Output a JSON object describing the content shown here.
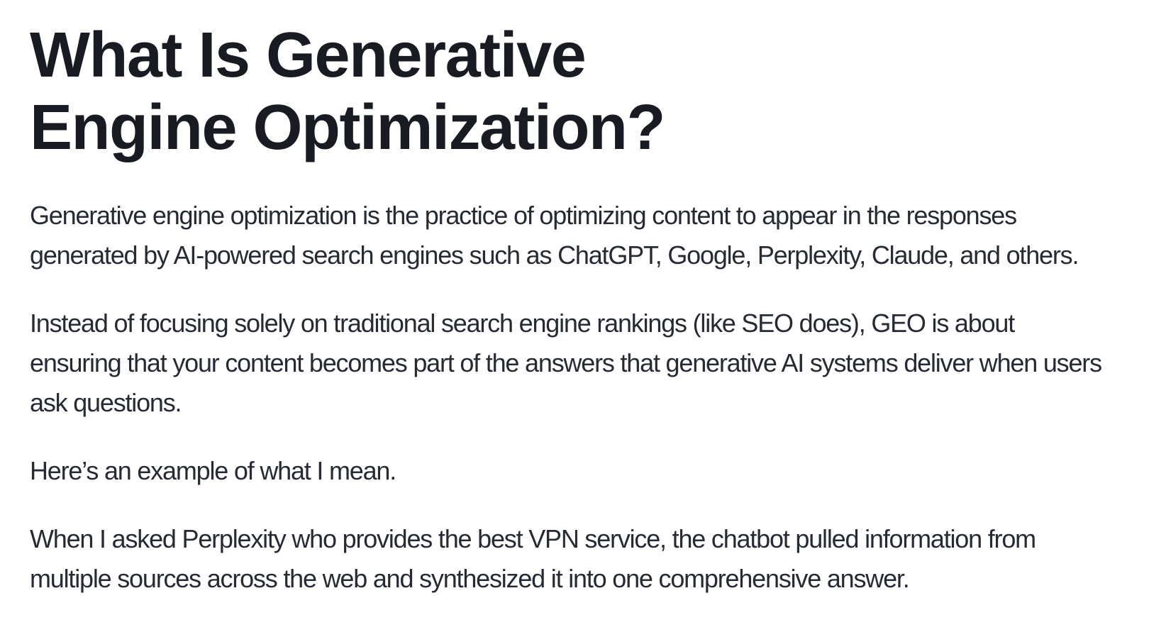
{
  "page": {
    "background_color": "#ffffff"
  },
  "content": {
    "title": "What Is Generative\nEngine Optimization?",
    "title_color": "#191b22",
    "text_color": "#262b33",
    "paragraphs": [
      "Generative engine optimization is the practice of optimizing content to appear in the responses generated by AI-powered search engines such as ChatGPT, Google, Perplexity, Claude, and others.",
      "Instead of focusing solely on traditional search engine rankings (like SEO does), GEO is about ensuring that your content becomes part of the answers that generative AI systems deliver when users ask questions.",
      "Here’s an example of what I mean.",
      "When I asked Perplexity who provides the best VPN service, the chatbot pulled information from multiple sources across the web and synthesized it into one comprehensive answer."
    ]
  }
}
